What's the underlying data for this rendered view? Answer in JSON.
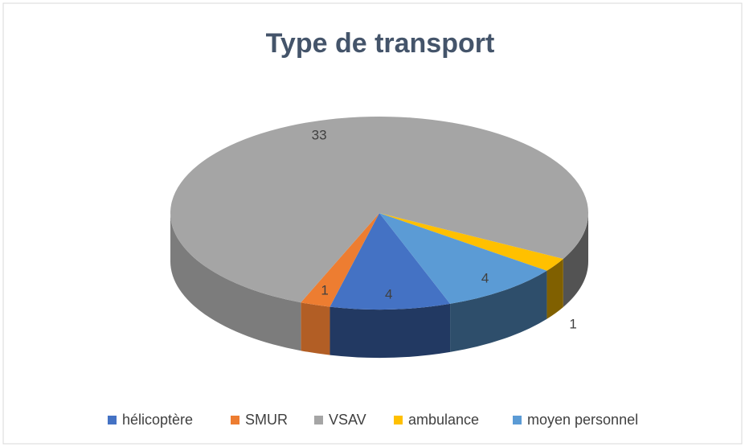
{
  "chart_data": {
    "type": "pie",
    "title": "Type de transport",
    "categories": [
      "hélicoptère",
      "SMUR",
      "VSAV",
      "ambulance",
      "moyen personnel"
    ],
    "values": [
      4,
      1,
      33,
      1,
      4
    ],
    "colors": [
      "#4472c4",
      "#ed7d31",
      "#a5a5a5",
      "#ffc000",
      "#5b9bd5"
    ],
    "legend": "bottom"
  }
}
